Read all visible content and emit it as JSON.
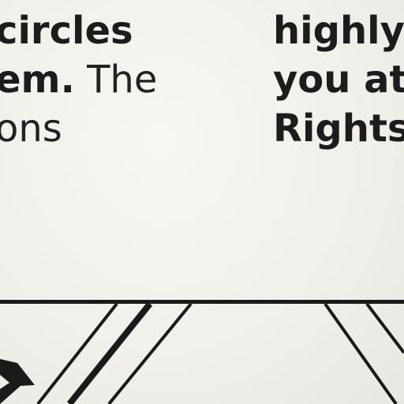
{
  "left_column": {
    "line1": "circles",
    "line2_bold": "em.",
    "line2_light": " The",
    "line3": "ons"
  },
  "right_column": {
    "line1": "highly",
    "line2": "you at",
    "line3": "Rights"
  },
  "colors": {
    "ink": "#1c1c1c",
    "paper": "#f2f0eb"
  }
}
